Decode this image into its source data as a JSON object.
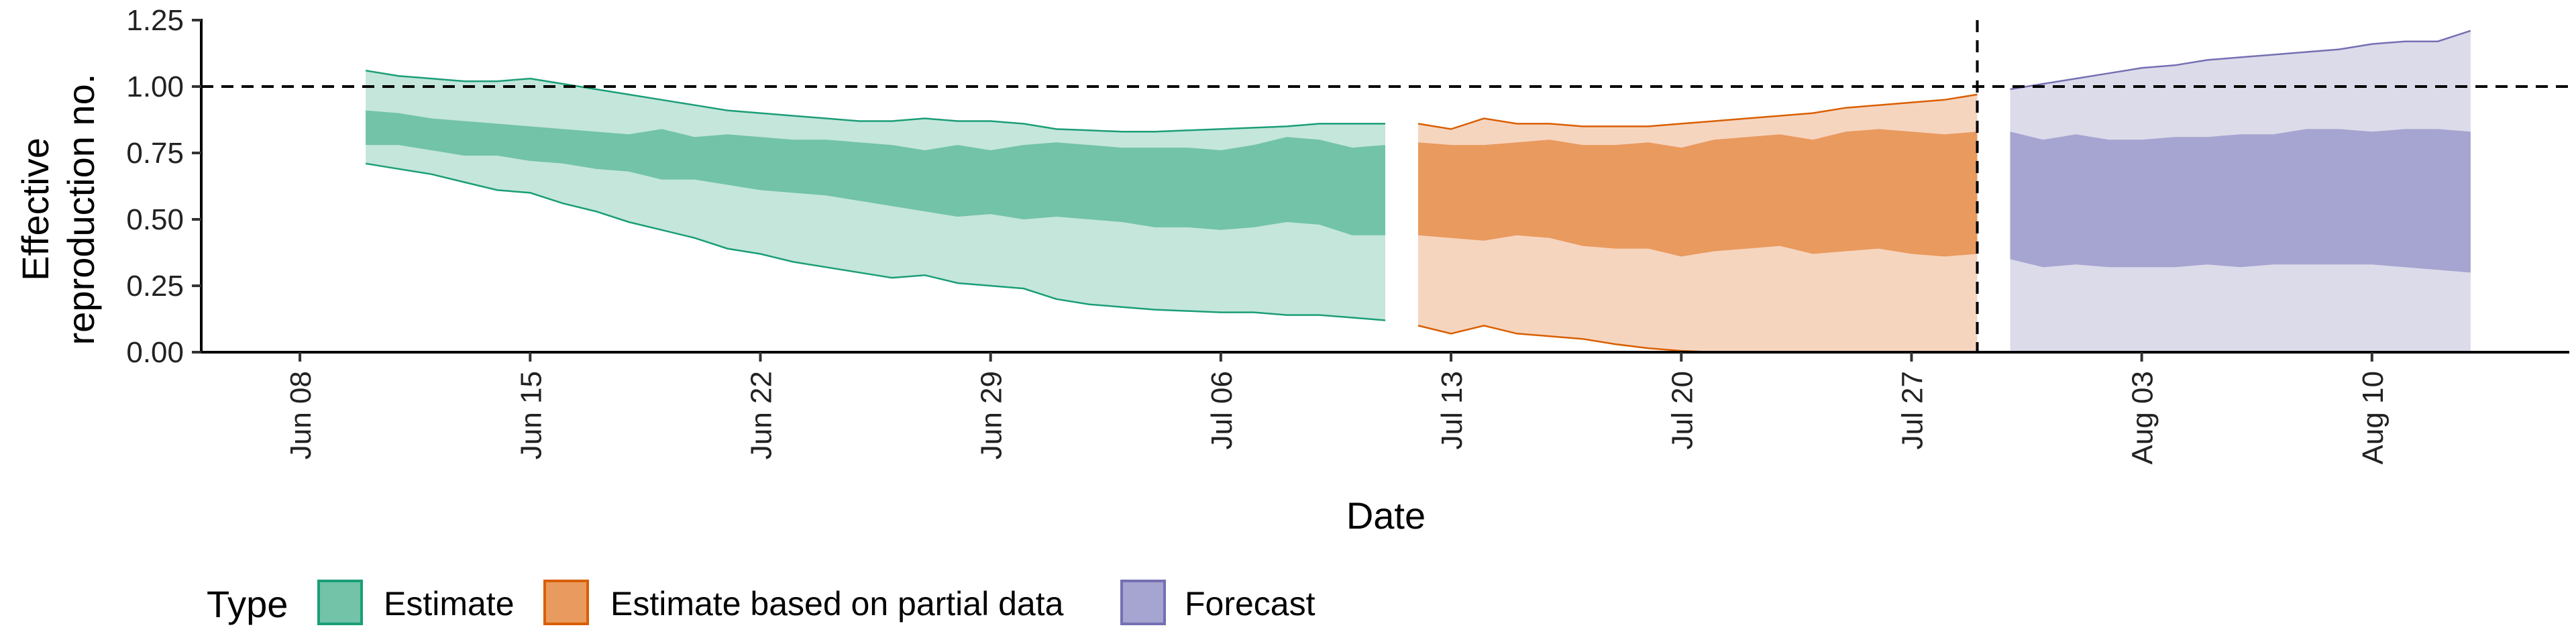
{
  "chart_data": {
    "type": "area",
    "title": "",
    "xlabel": "Date",
    "ylabel": "Effective reproduction no.",
    "ylabel_lines": [
      "Effective",
      "reproduction no."
    ],
    "ylim": [
      0,
      1.25
    ],
    "xlim": [
      "2020-06-05",
      "2020-08-16"
    ],
    "y_ticks": [
      "0.00",
      "0.25",
      "0.50",
      "0.75",
      "1.00",
      "1.25"
    ],
    "y_tick_values": [
      0,
      0.25,
      0.5,
      0.75,
      1.0,
      1.25
    ],
    "x_ticks": [
      {
        "date": "2020-06-08",
        "label": "Jun 08"
      },
      {
        "date": "2020-06-15",
        "label": "Jun 15"
      },
      {
        "date": "2020-06-22",
        "label": "Jun 22"
      },
      {
        "date": "2020-06-29",
        "label": "Jun 29"
      },
      {
        "date": "2020-07-06",
        "label": "Jul 06"
      },
      {
        "date": "2020-07-13",
        "label": "Jul 13"
      },
      {
        "date": "2020-07-20",
        "label": "Jul 20"
      },
      {
        "date": "2020-07-27",
        "label": "Jul 27"
      },
      {
        "date": "2020-08-03",
        "label": "Aug 03"
      },
      {
        "date": "2020-08-10",
        "label": "Aug 10"
      }
    ],
    "reference_line": {
      "y": 1.0,
      "style": "dashed"
    },
    "vertical_line": {
      "date": "2020-07-29",
      "style": "dashed"
    },
    "grid": false,
    "legend": {
      "title": "Type",
      "position": "bottom",
      "entries": [
        "Estimate",
        "Estimate based on partial data",
        "Forecast"
      ]
    },
    "series": [
      {
        "name": "Estimate",
        "fill_outer": "#c4e6db",
        "fill_inner": "#72c3a8",
        "stroke": "#1b9e77",
        "x": [
          "2020-06-10",
          "2020-06-11",
          "2020-06-12",
          "2020-06-13",
          "2020-06-14",
          "2020-06-15",
          "2020-06-16",
          "2020-06-17",
          "2020-06-18",
          "2020-06-19",
          "2020-06-20",
          "2020-06-21",
          "2020-06-22",
          "2020-06-23",
          "2020-06-24",
          "2020-06-25",
          "2020-06-26",
          "2020-06-27",
          "2020-06-28",
          "2020-06-29",
          "2020-06-30",
          "2020-07-01",
          "2020-07-02",
          "2020-07-03",
          "2020-07-04",
          "2020-07-05",
          "2020-07-06",
          "2020-07-07",
          "2020-07-08",
          "2020-07-09",
          "2020-07-10",
          "2020-07-11"
        ],
        "outer_lower": [
          0.71,
          0.69,
          0.67,
          0.64,
          0.61,
          0.6,
          0.56,
          0.53,
          0.49,
          0.46,
          0.43,
          0.39,
          0.37,
          0.34,
          0.32,
          0.3,
          0.28,
          0.29,
          0.26,
          0.25,
          0.24,
          0.2,
          0.18,
          0.17,
          0.16,
          0.155,
          0.15,
          0.15,
          0.14,
          0.14,
          0.13,
          0.12
        ],
        "outer_upper": [
          1.06,
          1.04,
          1.03,
          1.02,
          1.02,
          1.03,
          1.01,
          0.99,
          0.97,
          0.95,
          0.93,
          0.91,
          0.9,
          0.89,
          0.88,
          0.87,
          0.87,
          0.88,
          0.87,
          0.87,
          0.86,
          0.84,
          0.835,
          0.83,
          0.83,
          0.835,
          0.84,
          0.845,
          0.85,
          0.86,
          0.86,
          0.86
        ],
        "inner_lower": [
          0.78,
          0.78,
          0.76,
          0.74,
          0.74,
          0.72,
          0.71,
          0.69,
          0.68,
          0.65,
          0.65,
          0.63,
          0.61,
          0.6,
          0.59,
          0.57,
          0.55,
          0.53,
          0.51,
          0.52,
          0.5,
          0.51,
          0.5,
          0.49,
          0.47,
          0.47,
          0.46,
          0.47,
          0.49,
          0.48,
          0.44,
          0.44
        ],
        "inner_upper": [
          0.91,
          0.9,
          0.88,
          0.87,
          0.86,
          0.85,
          0.84,
          0.83,
          0.82,
          0.84,
          0.81,
          0.82,
          0.81,
          0.8,
          0.8,
          0.79,
          0.78,
          0.76,
          0.78,
          0.76,
          0.78,
          0.79,
          0.78,
          0.77,
          0.77,
          0.77,
          0.76,
          0.78,
          0.81,
          0.8,
          0.77,
          0.78
        ]
      },
      {
        "name": "Estimate based on partial data",
        "fill_outer": "#f6d5bf",
        "fill_inner": "#e99a5e",
        "stroke": "#d95f02",
        "x": [
          "2020-07-12",
          "2020-07-13",
          "2020-07-14",
          "2020-07-15",
          "2020-07-16",
          "2020-07-17",
          "2020-07-18",
          "2020-07-19",
          "2020-07-20",
          "2020-07-21",
          "2020-07-22",
          "2020-07-23",
          "2020-07-24",
          "2020-07-25",
          "2020-07-26",
          "2020-07-27",
          "2020-07-28",
          "2020-07-29"
        ],
        "outer_lower": [
          0.1,
          0.07,
          0.1,
          0.07,
          0.06,
          0.05,
          0.03,
          0.015,
          0.005,
          0.0,
          0.0,
          0.0,
          0.0,
          0.0,
          0.0,
          0.0,
          0.0,
          0.0
        ],
        "outer_upper": [
          0.86,
          0.84,
          0.88,
          0.86,
          0.86,
          0.85,
          0.85,
          0.85,
          0.86,
          0.87,
          0.88,
          0.89,
          0.9,
          0.92,
          0.93,
          0.94,
          0.95,
          0.97
        ],
        "inner_lower": [
          0.44,
          0.43,
          0.42,
          0.44,
          0.43,
          0.4,
          0.39,
          0.39,
          0.36,
          0.38,
          0.39,
          0.4,
          0.37,
          0.38,
          0.39,
          0.37,
          0.36,
          0.37
        ],
        "inner_upper": [
          0.79,
          0.78,
          0.78,
          0.79,
          0.8,
          0.78,
          0.78,
          0.79,
          0.77,
          0.8,
          0.81,
          0.82,
          0.8,
          0.83,
          0.84,
          0.83,
          0.82,
          0.83
        ]
      },
      {
        "name": "Forecast",
        "fill_outer": "#dcdbea",
        "fill_inner": "#a6a4d0",
        "stroke": "#7570b3",
        "x": [
          "2020-07-30",
          "2020-07-31",
          "2020-08-01",
          "2020-08-02",
          "2020-08-03",
          "2020-08-04",
          "2020-08-05",
          "2020-08-06",
          "2020-08-07",
          "2020-08-08",
          "2020-08-09",
          "2020-08-10",
          "2020-08-11",
          "2020-08-12",
          "2020-08-13"
        ],
        "outer_lower": [
          0,
          0,
          0,
          0,
          0,
          0,
          0,
          0,
          0,
          0,
          0,
          0,
          0,
          0,
          0
        ],
        "outer_upper": [
          0.99,
          1.01,
          1.03,
          1.05,
          1.07,
          1.08,
          1.1,
          1.11,
          1.12,
          1.13,
          1.14,
          1.16,
          1.17,
          1.17,
          1.21
        ],
        "inner_lower": [
          0.35,
          0.32,
          0.33,
          0.32,
          0.32,
          0.32,
          0.33,
          0.32,
          0.33,
          0.33,
          0.33,
          0.33,
          0.32,
          0.31,
          0.3
        ],
        "inner_upper": [
          0.83,
          0.8,
          0.82,
          0.8,
          0.8,
          0.81,
          0.81,
          0.82,
          0.82,
          0.84,
          0.84,
          0.83,
          0.84,
          0.84,
          0.83
        ]
      }
    ]
  }
}
